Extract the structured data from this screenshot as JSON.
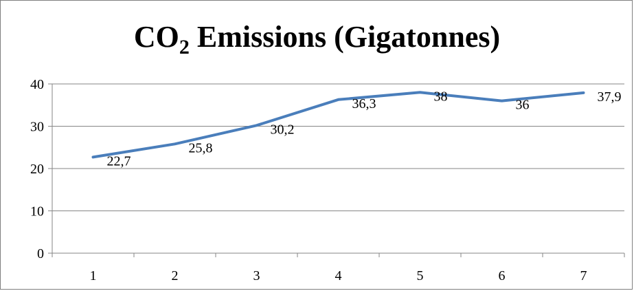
{
  "chart_data": {
    "type": "line",
    "title_main": "CO",
    "title_sub": "2",
    "title_rest": " Emissions (Gigatonnes)",
    "categories": [
      "1",
      "2",
      "3",
      "4",
      "5",
      "6",
      "7"
    ],
    "series": [
      {
        "values": [
          22.7,
          25.8,
          30.2,
          36.3,
          38,
          36,
          37.9
        ],
        "labels": [
          "22,7",
          "25,8",
          "30,2",
          "36,3",
          "38",
          "36",
          "37,9"
        ],
        "color": "#4a7ebb"
      }
    ],
    "ylim": [
      0,
      40
    ],
    "yticks": [
      0,
      10,
      20,
      30,
      40
    ],
    "grid": true,
    "legend": "none"
  }
}
